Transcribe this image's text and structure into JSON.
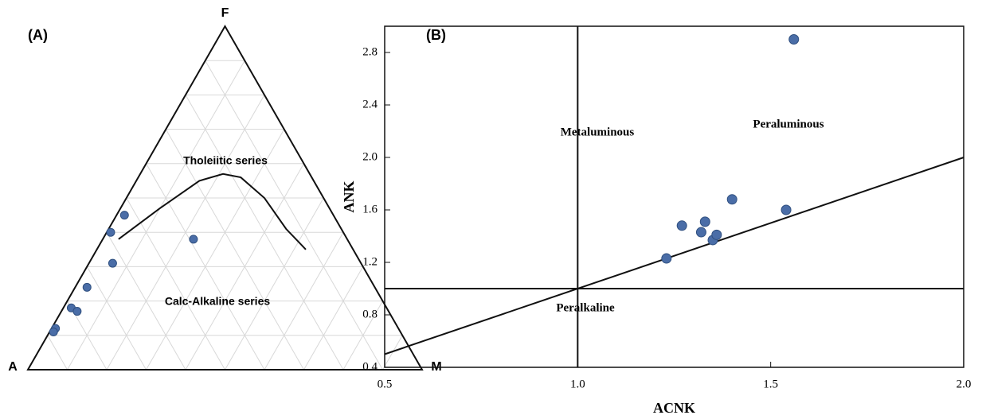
{
  "chart_data": [
    {
      "type": "ternary",
      "label": "(A)",
      "vertices": {
        "top": "F",
        "left": "A",
        "right": "M"
      },
      "grid": true,
      "ticks": [
        10,
        20,
        30,
        40,
        50,
        60,
        70,
        80,
        90
      ],
      "color": "#4a6da7",
      "a": [
        53,
        59,
        63,
        39,
        73,
        80,
        79,
        87,
        88
      ],
      "f": [
        45,
        40,
        31,
        38,
        24,
        18,
        17,
        12,
        11
      ],
      "m": [
        2,
        1,
        6,
        23,
        3,
        2,
        4,
        1,
        1
      ],
      "boundary": {
        "a": [
          58,
          43,
          29,
          22,
          18,
          15,
          14,
          12
        ],
        "f": [
          38,
          47,
          55,
          57,
          56,
          50,
          41,
          35
        ],
        "m": [
          4,
          10,
          16,
          21,
          26,
          35,
          45,
          53
        ]
      },
      "annotations": [
        "Tholeiitic series",
        "Calc-Alkaline series"
      ]
    },
    {
      "type": "scatter",
      "label": "(B)",
      "xlabel": "ACNK",
      "ylabel": "ANK",
      "color": "#4a6da7",
      "x": [
        1.56,
        1.23,
        1.27,
        1.32,
        1.33,
        1.35,
        1.36,
        1.4,
        1.54
      ],
      "values": [
        2.9,
        1.23,
        1.48,
        1.43,
        1.51,
        1.37,
        1.41,
        1.68,
        1.6
      ],
      "xlim": [
        0.5,
        2.0
      ],
      "ylim": [
        0.4,
        3.0
      ],
      "xticks": [
        0.5,
        {
          "value": 1,
          "label": "1.0"
        },
        1.5,
        {
          "value": 2,
          "label": "2.0"
        }
      ],
      "yticks": [
        0.4,
        0.8,
        1.2,
        1.6,
        {
          "value": 2,
          "label": "2.0"
        },
        2.4,
        2.8
      ],
      "vlines": [
        1
      ],
      "hlines": [
        1
      ],
      "diagonal": {
        "x": [
          0.5,
          2.0
        ],
        "y": [
          0.5,
          2.0
        ]
      },
      "annotations": [
        "Metaluminous",
        "Peraluminous",
        "Peralkaline"
      ]
    }
  ]
}
